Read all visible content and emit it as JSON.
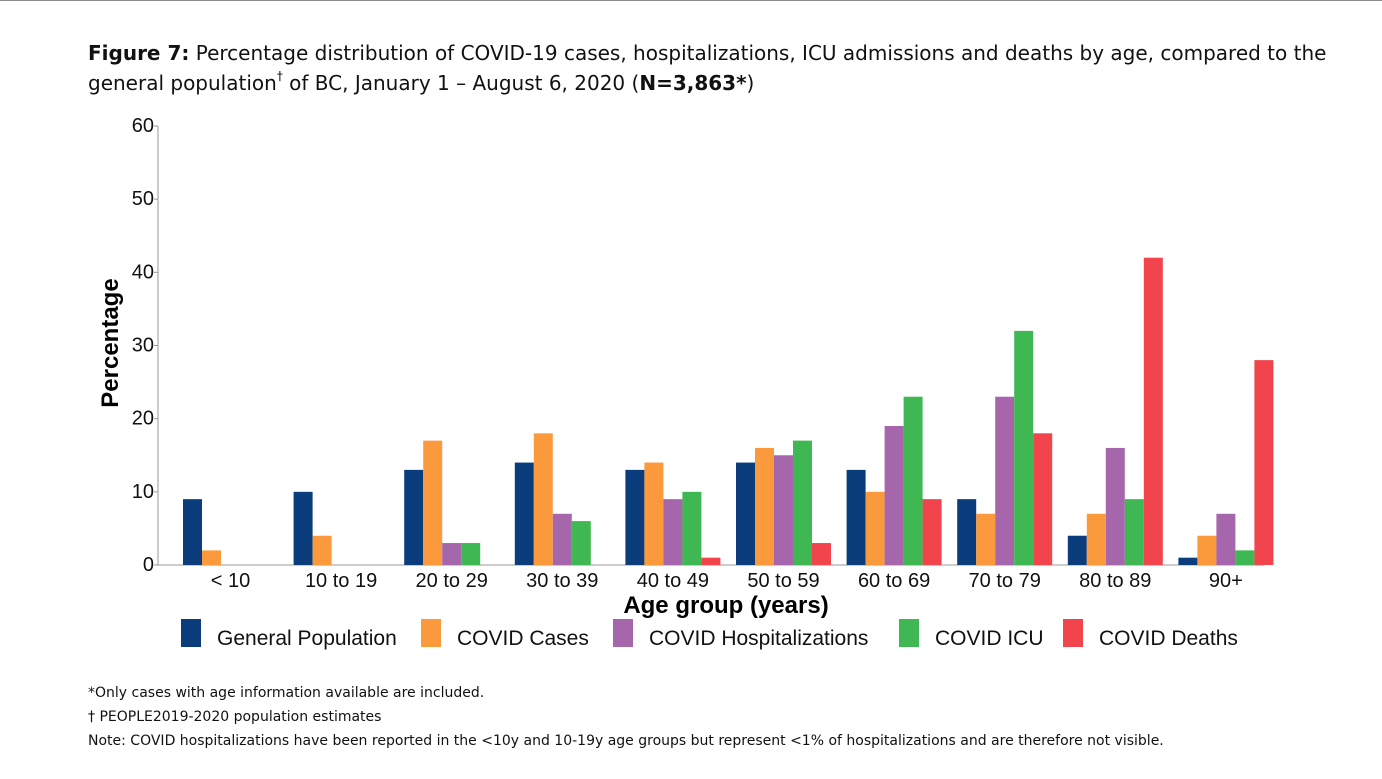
{
  "title": {
    "lead": "Figure 7:",
    "text": "Percentage distribution of COVID-19 cases, hospitalizations, ICU admissions and deaths by age, compared to the general population",
    "dagger": "†",
    "text_after": "of BC, January 1 – August 6, 2020 (",
    "n_label": "N=3,863*",
    "close": ")"
  },
  "chart_data": {
    "type": "bar",
    "xlabel": "Age group (years)",
    "ylabel": "Percentage",
    "ylim": [
      0,
      60
    ],
    "yticks": [
      0,
      10,
      20,
      30,
      40,
      50,
      60
    ],
    "categories": [
      "< 10",
      "10 to 19",
      "20 to 29",
      "30 to 39",
      "40 to 49",
      "50 to 59",
      "60 to 69",
      "70 to 79",
      "80 to 89",
      "90+"
    ],
    "series": [
      {
        "name": "General Population",
        "color": "#0b3d7d",
        "values": [
          9,
          10,
          13,
          14,
          13,
          14,
          13,
          9,
          4,
          1
        ]
      },
      {
        "name": "COVID Cases",
        "color": "#fb9a3c",
        "values": [
          2,
          4,
          17,
          18,
          14,
          16,
          10,
          7,
          7,
          4
        ]
      },
      {
        "name": "COVID Hospitalizations",
        "color": "#a666ac",
        "values": [
          0,
          0,
          3,
          7,
          9,
          15,
          19,
          23,
          16,
          7
        ]
      },
      {
        "name": "COVID ICU",
        "color": "#3fb853",
        "values": [
          0,
          0,
          3,
          6,
          10,
          17,
          23,
          32,
          9,
          2
        ]
      },
      {
        "name": "COVID Deaths",
        "color": "#f2444d",
        "values": [
          0,
          0,
          0,
          0,
          1,
          3,
          9,
          18,
          42,
          28
        ]
      }
    ],
    "legend": "bottom",
    "grid": false
  },
  "footnotes": [
    "*Only cases with age information available are included.",
    "† PEOPLE2019-2020 population estimates",
    "Note: COVID hospitalizations have been reported in the <10y and 10-19y age groups but represent <1% of hospitalizations and are therefore not visible."
  ]
}
